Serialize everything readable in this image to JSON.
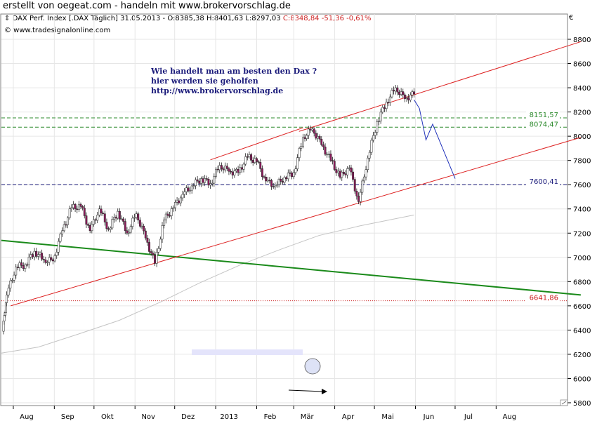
{
  "page_title": "erstellt von oegeat.com - handeln mit www.brokervorschlag.de",
  "header": {
    "symbol_line": "DAX Perf. Index [.DAX  Täglich] 31.05.2013 - ",
    "ohlc_black": "O:8385,38 H:8401,63 L:8297,03 ",
    "ohlc_red": "C:8348,84 -51,36 -0,61%",
    "copyright": "© www.tradesignalonline.com",
    "currency": "€"
  },
  "annotation": {
    "line1": "Wie handelt man am besten  den Dax ?",
    "line2": "hier werden sie geholfen",
    "line3": "http://www.brokervorschlag.de"
  },
  "levels": [
    {
      "label": "8151,57",
      "value": 8151.57,
      "color": "#2e8b2e"
    },
    {
      "label": "8074,47",
      "value": 8074.47,
      "color": "#2e8b2e"
    },
    {
      "label": "7600,41",
      "value": 7600.41,
      "color": "#1a1a7a"
    },
    {
      "label": "6641,86",
      "value": 6641.86,
      "color": "#cc2222"
    }
  ],
  "colors": {
    "grid": "#e6e6e6",
    "up": "#ffffff",
    "down": "#8b1a5a",
    "channel": "#dd2222",
    "trend": "#1a8a1a",
    "sma": "#c0c0c0",
    "forecast": "#2233bb"
  },
  "chart_data": {
    "type": "candlestick",
    "title": "DAX Perf. Index [.DAX  Täglich] 31.05.2013",
    "x_labels": [
      "Aug",
      "Sep",
      "Okt",
      "Nov",
      "Dez",
      "2013",
      "Feb",
      "Mär",
      "Apr",
      "Mai",
      "Jun",
      "Jul",
      "Aug"
    ],
    "y_ticks": [
      5800,
      6000,
      6200,
      6400,
      6600,
      6800,
      7000,
      7200,
      7400,
      7600,
      7800,
      8000,
      8200,
      8400,
      8600,
      8800
    ],
    "ylim": [
      5750,
      8900
    ],
    "last_bar": {
      "date": "31.05.2013",
      "open": 8385.38,
      "high": 8401.63,
      "low": 8297.03,
      "close": 8348.84,
      "change": -51.36,
      "change_pct": -0.61
    },
    "close_series": [
      {
        "date": "2012-07-24",
        "close": 6390
      },
      {
        "date": "2012-07-27",
        "close": 6690
      },
      {
        "date": "2012-08-03",
        "close": 6920
      },
      {
        "date": "2012-08-10",
        "close": 6940
      },
      {
        "date": "2012-08-17",
        "close": 7050
      },
      {
        "date": "2012-08-24",
        "close": 6980
      },
      {
        "date": "2012-08-31",
        "close": 6970
      },
      {
        "date": "2012-09-07",
        "close": 7220
      },
      {
        "date": "2012-09-14",
        "close": 7410
      },
      {
        "date": "2012-09-21",
        "close": 7420
      },
      {
        "date": "2012-09-28",
        "close": 7220
      },
      {
        "date": "2012-10-05",
        "close": 7400
      },
      {
        "date": "2012-10-12",
        "close": 7230
      },
      {
        "date": "2012-10-19",
        "close": 7380
      },
      {
        "date": "2012-10-26",
        "close": 7200
      },
      {
        "date": "2012-11-02",
        "close": 7360
      },
      {
        "date": "2012-11-09",
        "close": 7160
      },
      {
        "date": "2012-11-16",
        "close": 6950
      },
      {
        "date": "2012-11-23",
        "close": 7310
      },
      {
        "date": "2012-11-30",
        "close": 7410
      },
      {
        "date": "2012-12-07",
        "close": 7520
      },
      {
        "date": "2012-12-14",
        "close": 7590
      },
      {
        "date": "2012-12-21",
        "close": 7650
      },
      {
        "date": "2012-12-28",
        "close": 7610
      },
      {
        "date": "2013-01-04",
        "close": 7760
      },
      {
        "date": "2013-01-11",
        "close": 7710
      },
      {
        "date": "2013-01-18",
        "close": 7700
      },
      {
        "date": "2013-01-25",
        "close": 7830
      },
      {
        "date": "2013-02-01",
        "close": 7790
      },
      {
        "date": "2013-02-08",
        "close": 7630
      },
      {
        "date": "2013-02-15",
        "close": 7590
      },
      {
        "date": "2013-02-22",
        "close": 7660
      },
      {
        "date": "2013-03-01",
        "close": 7700
      },
      {
        "date": "2013-03-08",
        "close": 7990
      },
      {
        "date": "2013-03-15",
        "close": 8060
      },
      {
        "date": "2013-03-22",
        "close": 7930
      },
      {
        "date": "2013-03-29",
        "close": 7800
      },
      {
        "date": "2013-04-05",
        "close": 7660
      },
      {
        "date": "2013-04-12",
        "close": 7740
      },
      {
        "date": "2013-04-19",
        "close": 7460
      },
      {
        "date": "2013-04-26",
        "close": 7820
      },
      {
        "date": "2013-05-03",
        "close": 8120
      },
      {
        "date": "2013-05-10",
        "close": 8280
      },
      {
        "date": "2013-05-17",
        "close": 8400
      },
      {
        "date": "2013-05-24",
        "close": 8310
      },
      {
        "date": "2013-05-31",
        "close": 8349
      }
    ]
  }
}
